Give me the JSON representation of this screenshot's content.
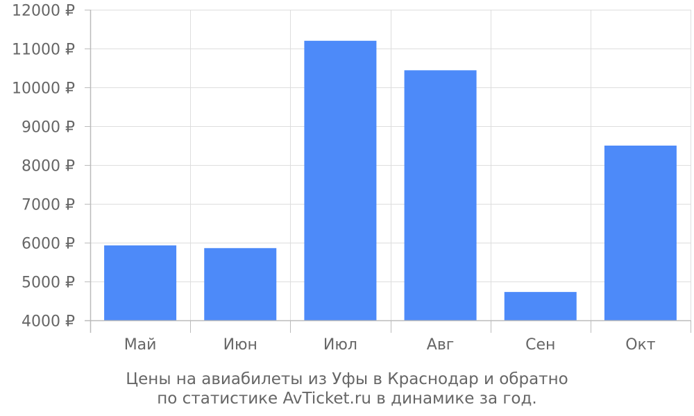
{
  "chart_data": {
    "type": "bar",
    "categories": [
      "Май",
      "Июн",
      "Июл",
      "Авг",
      "Сен",
      "Окт"
    ],
    "values": [
      5930,
      5860,
      11200,
      10440,
      4730,
      8500
    ],
    "ylim": [
      4000,
      12000
    ],
    "yticks": [
      4000,
      5000,
      6000,
      7000,
      8000,
      9000,
      10000,
      11000,
      12000
    ],
    "ytick_suffix": " ₽",
    "grid": true,
    "bar_color": "#4d8af9",
    "grid_color": "#dddddd",
    "axis_color": "#bbbbbb",
    "text_color": "#666666"
  },
  "caption": {
    "line1": "Цены на авиабилеты из Уфы в Краснодар и обратно",
    "line2": "по статистике AvTicket.ru в динамике за год."
  }
}
